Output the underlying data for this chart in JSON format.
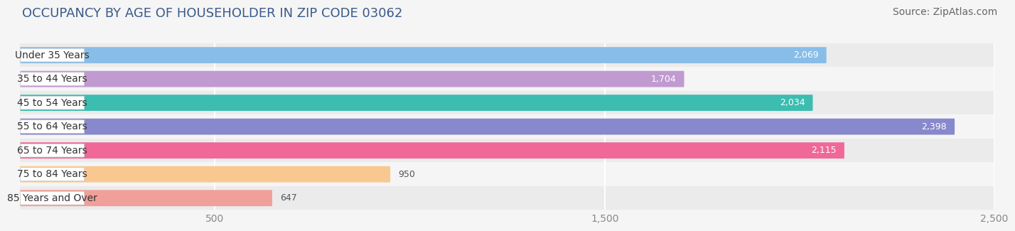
{
  "title": "OCCUPANCY BY AGE OF HOUSEHOLDER IN ZIP CODE 03062",
  "source": "Source: ZipAtlas.com",
  "categories": [
    "Under 35 Years",
    "35 to 44 Years",
    "45 to 54 Years",
    "55 to 64 Years",
    "65 to 74 Years",
    "75 to 84 Years",
    "85 Years and Over"
  ],
  "values": [
    2069,
    1704,
    2034,
    2398,
    2115,
    950,
    647
  ],
  "bar_colors": [
    "#88bde8",
    "#c09ad0",
    "#3dbcb0",
    "#8888cc",
    "#f06898",
    "#f8c890",
    "#f0a098"
  ],
  "xlim": [
    0,
    2500
  ],
  "xticks": [
    500,
    1500,
    2500
  ],
  "background_color": "#f5f5f5",
  "row_bg_even": "#ebebeb",
  "row_bg_odd": "#f5f5f5",
  "title_fontsize": 13,
  "source_fontsize": 10,
  "label_fontsize": 10,
  "value_fontsize": 9,
  "bar_height": 0.68,
  "value_color_white": "#ffffff",
  "value_color_dark": "#555555",
  "white_threshold": 1500,
  "label_text_color": "#333333",
  "grid_color": "#ffffff",
  "tick_color": "#888888"
}
